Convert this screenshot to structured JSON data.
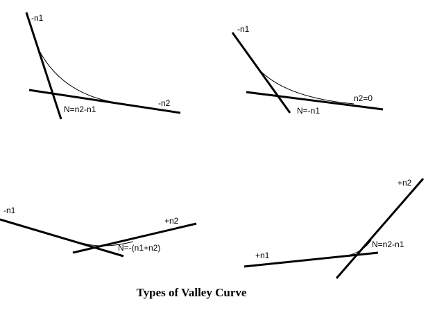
{
  "title": "Types of Valley Curve",
  "diagrams": [
    {
      "labels": [
        "-n1",
        "-n2",
        "N=n2-n1"
      ]
    },
    {
      "labels": [
        "-n1",
        "n2=0",
        "N=-n1"
      ]
    },
    {
      "labels": [
        "-n1",
        "+n2",
        "N=-(n1+n2)"
      ]
    },
    {
      "labels": [
        "+n2",
        "+n1",
        "N=n2-n1"
      ]
    }
  ]
}
